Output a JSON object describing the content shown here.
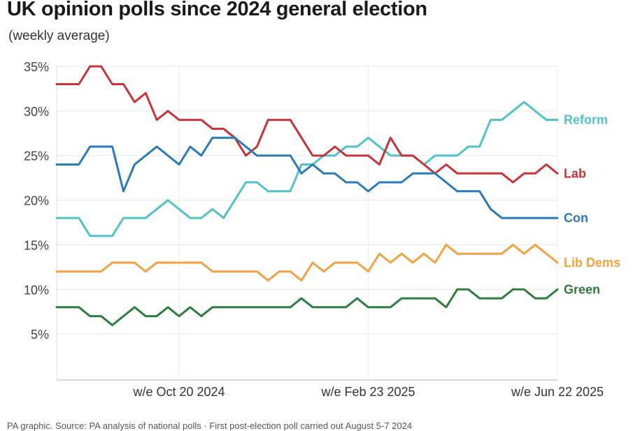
{
  "chart_data": {
    "type": "line",
    "title": "UK opinion polls since 2024 general election",
    "subtitle": "(weekly average)",
    "source": "PA graphic. Source: PA analysis of national polls · First post-election poll carried out August 5-7 2024",
    "x_tick_labels": [
      "w/e Oct 20 2024",
      "w/e Feb 23 2025",
      "w/e Jun 22 2025"
    ],
    "x_tick_index": [
      11,
      28,
      45
    ],
    "y_ticks": [
      5,
      10,
      15,
      20,
      25,
      30,
      35
    ],
    "y_tick_labels": [
      "5%",
      "10%",
      "15%",
      "20%",
      "25%",
      "30%",
      "35%"
    ],
    "ylim": [
      0,
      35
    ],
    "grid": true,
    "series": [
      {
        "name": "Reform",
        "color": "#4fc3c8",
        "values": [
          18,
          18,
          18,
          16,
          16,
          16,
          18,
          18,
          18,
          19,
          20,
          19,
          18,
          18,
          19,
          18,
          20,
          22,
          22,
          21,
          21,
          21,
          24,
          24,
          25,
          25,
          26,
          26,
          27,
          26,
          25,
          25,
          25,
          24,
          25,
          25,
          25,
          26,
          26,
          29,
          29,
          30,
          31,
          30,
          29,
          29
        ]
      },
      {
        "name": "Lab",
        "color": "#c8333a",
        "values": [
          33,
          33,
          33,
          35,
          35,
          33,
          33,
          31,
          32,
          29,
          30,
          29,
          29,
          29,
          28,
          28,
          27,
          25,
          26,
          29,
          29,
          29,
          27,
          25,
          25,
          26,
          25,
          25,
          25,
          24,
          27,
          25,
          25,
          24,
          23,
          24,
          23,
          23,
          23,
          23,
          23,
          22,
          23,
          23,
          24,
          23
        ]
      },
      {
        "name": "Con",
        "color": "#2a7bb8",
        "values": [
          24,
          24,
          24,
          26,
          26,
          26,
          21,
          24,
          25,
          26,
          25,
          24,
          26,
          25,
          27,
          27,
          27,
          26,
          25,
          25,
          25,
          25,
          23,
          24,
          23,
          23,
          22,
          22,
          21,
          22,
          22,
          22,
          23,
          23,
          23,
          22,
          21,
          21,
          21,
          19,
          18,
          18,
          18,
          18,
          18,
          18
        ]
      },
      {
        "name": "Lib Dems",
        "color": "#f2a143",
        "values": [
          12,
          12,
          12,
          12,
          12,
          13,
          13,
          13,
          12,
          13,
          13,
          13,
          13,
          13,
          12,
          12,
          12,
          12,
          12,
          11,
          12,
          12,
          11,
          13,
          12,
          13,
          13,
          13,
          12,
          14,
          13,
          14,
          13,
          14,
          13,
          15,
          14,
          14,
          14,
          14,
          14,
          15,
          14,
          15,
          14,
          13
        ]
      },
      {
        "name": "Green",
        "color": "#2e7d3e",
        "values": [
          8,
          8,
          8,
          7,
          7,
          6,
          7,
          8,
          7,
          7,
          8,
          7,
          8,
          7,
          8,
          8,
          8,
          8,
          8,
          8,
          8,
          8,
          9,
          8,
          8,
          8,
          8,
          9,
          8,
          8,
          8,
          9,
          9,
          9,
          9,
          8,
          10,
          10,
          9,
          9,
          9,
          10,
          10,
          9,
          9,
          10
        ]
      }
    ]
  }
}
